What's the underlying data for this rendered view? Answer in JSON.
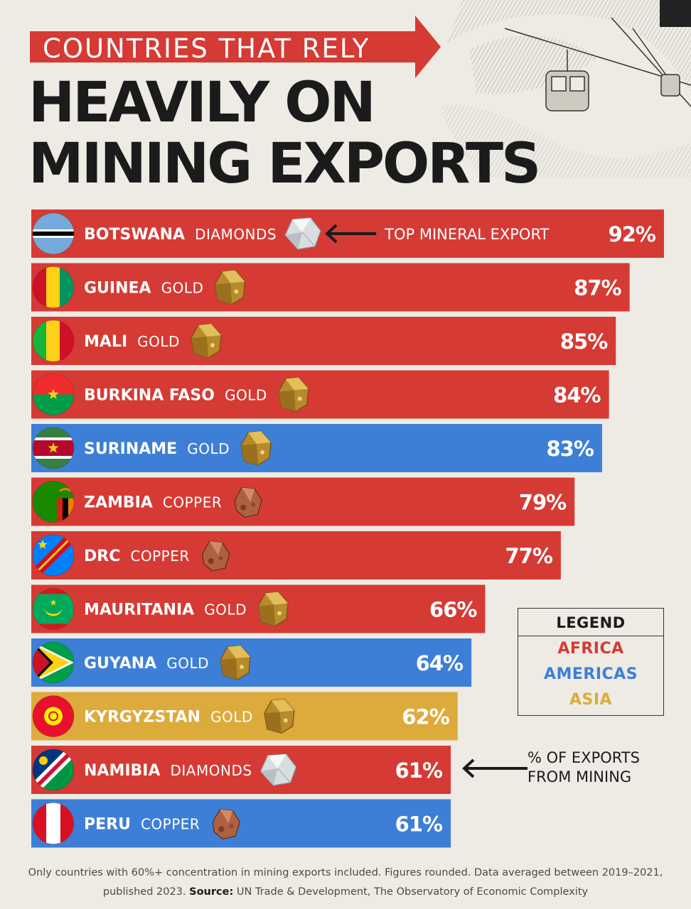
{
  "title": {
    "line1": "COUNTRIES THAT RELY",
    "line2": "HEAVILY ON",
    "line3": "MINING EXPORTS"
  },
  "colors": {
    "africa": "#d63a34",
    "americas": "#3d7fd6",
    "asia": "#ddaa3c",
    "background": "#edebe4",
    "gold": "#b98a2b",
    "copper": "#b06042",
    "diamond": "#d8dde0"
  },
  "annotations": {
    "top_mineral": "TOP MINERAL EXPORT",
    "pct_exports_line1": "% OF EXPORTS",
    "pct_exports_line2": "FROM MINING"
  },
  "legend": {
    "title": "LEGEND",
    "items": [
      {
        "label": "AFRICA",
        "color": "#d63a34"
      },
      {
        "label": "AMERICAS",
        "color": "#3d7fd6"
      },
      {
        "label": "ASIA",
        "color": "#ddaa3c"
      }
    ]
  },
  "footer": {
    "line1": "Only countries with 60%+ concentration in mining exports included. Figures rounded. Data averaged between 2019–2021,",
    "line2_prefix": "published 2023.",
    "source_label": "Source:",
    "source_text": "UN Trade & Development, The Observatory of Economic Complexity"
  },
  "chart_data": {
    "type": "bar",
    "orientation": "horizontal",
    "title": "Countries That Rely Heavily on Mining Exports",
    "value_label": "% of exports from mining",
    "unit": "%",
    "xlim": [
      0,
      92
    ],
    "categories": [
      "BOTSWANA",
      "GUINEA",
      "MALI",
      "BURKINA FASO",
      "SURINAME",
      "ZAMBIA",
      "DRC",
      "MAURITANIA",
      "GUYANA",
      "KYRGYZSTAN",
      "NAMIBIA",
      "PERU"
    ],
    "values": [
      92,
      87,
      85,
      84,
      83,
      79,
      77,
      66,
      64,
      62,
      61,
      61
    ],
    "value_labels": [
      "92%",
      "87%",
      "85%",
      "84%",
      "83%",
      "79%",
      "77%",
      "66%",
      "64%",
      "62%",
      "61%",
      "61%"
    ],
    "minerals": [
      "DIAMONDS",
      "GOLD",
      "GOLD",
      "GOLD",
      "GOLD",
      "COPPER",
      "COPPER",
      "GOLD",
      "GOLD",
      "GOLD",
      "DIAMONDS",
      "COPPER"
    ],
    "regions": [
      "Africa",
      "Africa",
      "Africa",
      "Africa",
      "Americas",
      "Africa",
      "Africa",
      "Africa",
      "Americas",
      "Asia",
      "Africa",
      "Americas"
    ],
    "flags": [
      "botswana-flag",
      "guinea-flag",
      "mali-flag",
      "burkina-faso-flag",
      "suriname-flag",
      "zambia-flag",
      "drc-flag",
      "mauritania-flag",
      "guyana-flag",
      "kyrgyzstan-flag",
      "namibia-flag",
      "peru-flag"
    ]
  }
}
